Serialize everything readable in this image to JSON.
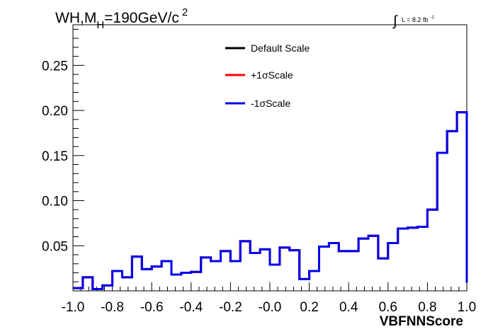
{
  "chart_data": {
    "type": "histogram-step",
    "title_parts": {
      "main": "WH,M",
      "subscript": "H",
      "rest": "=190GeV/c",
      "superscript": "2"
    },
    "lumi_label": {
      "integral_symbol": "∫",
      "text": "L = 8.2 fb",
      "superscript": "-1"
    },
    "xlabel": "VBFNNScore",
    "ylabel": "",
    "xlim": [
      -1.0,
      1.0
    ],
    "ylim": [
      0.0,
      0.295
    ],
    "x_tick_labels": [
      "-1.0",
      "-0.8",
      "-0.6",
      "-0.4",
      "-0.2",
      "-0.0",
      "0.2",
      "0.4",
      "0.6",
      "0.8",
      "1.0"
    ],
    "y_tick_labels": [
      "0.05",
      "0.10",
      "0.15",
      "0.20",
      "0.25"
    ],
    "legend_position": "top-center",
    "bin_edges_start": -1.0,
    "bin_width": 0.05,
    "series": [
      {
        "name": "Default Scale",
        "color": "#000000",
        "values": [
          0.003,
          0.015,
          0.002,
          0.006,
          0.022,
          0.015,
          0.038,
          0.024,
          0.027,
          0.033,
          0.018,
          0.02,
          0.021,
          0.037,
          0.033,
          0.044,
          0.033,
          0.055,
          0.042,
          0.046,
          0.029,
          0.048,
          0.045,
          0.013,
          0.022,
          0.049,
          0.053,
          0.044,
          0.044,
          0.058,
          0.061,
          0.036,
          0.053,
          0.069,
          0.07,
          0.071,
          0.09,
          0.153,
          0.177,
          0.198,
          0.009
        ]
      },
      {
        "name": "+1σScale",
        "color": "#ff0000",
        "values": [
          0.003,
          0.015,
          0.002,
          0.006,
          0.022,
          0.015,
          0.038,
          0.024,
          0.027,
          0.033,
          0.018,
          0.02,
          0.021,
          0.037,
          0.033,
          0.044,
          0.033,
          0.055,
          0.042,
          0.046,
          0.029,
          0.048,
          0.045,
          0.013,
          0.022,
          0.049,
          0.053,
          0.044,
          0.044,
          0.058,
          0.061,
          0.036,
          0.053,
          0.069,
          0.07,
          0.071,
          0.09,
          0.153,
          0.177,
          0.198,
          0.009
        ]
      },
      {
        "name": "-1σScale",
        "color": "#0000ee",
        "values": [
          0.003,
          0.015,
          0.002,
          0.006,
          0.022,
          0.015,
          0.038,
          0.024,
          0.027,
          0.033,
          0.018,
          0.02,
          0.021,
          0.037,
          0.033,
          0.044,
          0.033,
          0.055,
          0.042,
          0.046,
          0.029,
          0.048,
          0.045,
          0.013,
          0.022,
          0.049,
          0.053,
          0.044,
          0.044,
          0.058,
          0.061,
          0.036,
          0.053,
          0.069,
          0.07,
          0.071,
          0.09,
          0.153,
          0.177,
          0.198,
          0.009
        ]
      }
    ]
  }
}
